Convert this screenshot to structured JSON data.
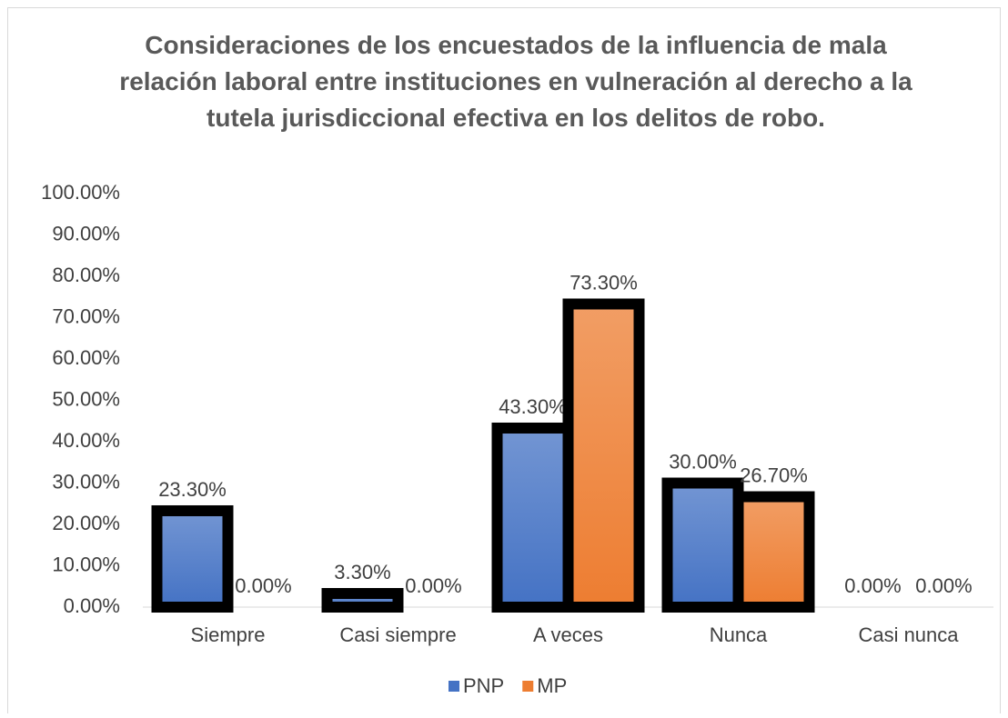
{
  "chart_data": {
    "type": "bar",
    "title": "Consideraciones de los encuestados de la influencia de mala relación laboral entre instituciones en vulneración al derecho a la tutela jurisdiccional efectiva en los delitos de robo.",
    "categories": [
      "Siempre",
      "Casi siempre",
      "A veces",
      "Nunca",
      "Casi nunca"
    ],
    "series": [
      {
        "name": "PNP",
        "color": "#4472c4",
        "values": [
          23.3,
          3.3,
          43.3,
          30.0,
          0.0
        ],
        "value_labels": [
          "23.30%",
          "3.30%",
          "43.30%",
          "30.00%",
          "0.00%"
        ]
      },
      {
        "name": "MP",
        "color": "#ed7d31",
        "values": [
          0.0,
          0.0,
          73.3,
          26.7,
          0.0
        ],
        "value_labels": [
          "0.00%",
          "0.00%",
          "73.30%",
          "26.70%",
          "0.00%"
        ]
      }
    ],
    "ylim": [
      0,
      100
    ],
    "yticks": [
      {
        "value": 0,
        "label": "0.00%"
      },
      {
        "value": 10,
        "label": "10.00%"
      },
      {
        "value": 20,
        "label": "20.00%"
      },
      {
        "value": 30,
        "label": "30.00%"
      },
      {
        "value": 40,
        "label": "40.00%"
      },
      {
        "value": 50,
        "label": "50.00%"
      },
      {
        "value": 60,
        "label": "60.00%"
      },
      {
        "value": 70,
        "label": "70.00%"
      },
      {
        "value": 80,
        "label": "80.00%"
      },
      {
        "value": 90,
        "label": "90.00%"
      },
      {
        "value": 100,
        "label": "100.00%"
      }
    ],
    "grid": false,
    "legend": "bottom"
  }
}
